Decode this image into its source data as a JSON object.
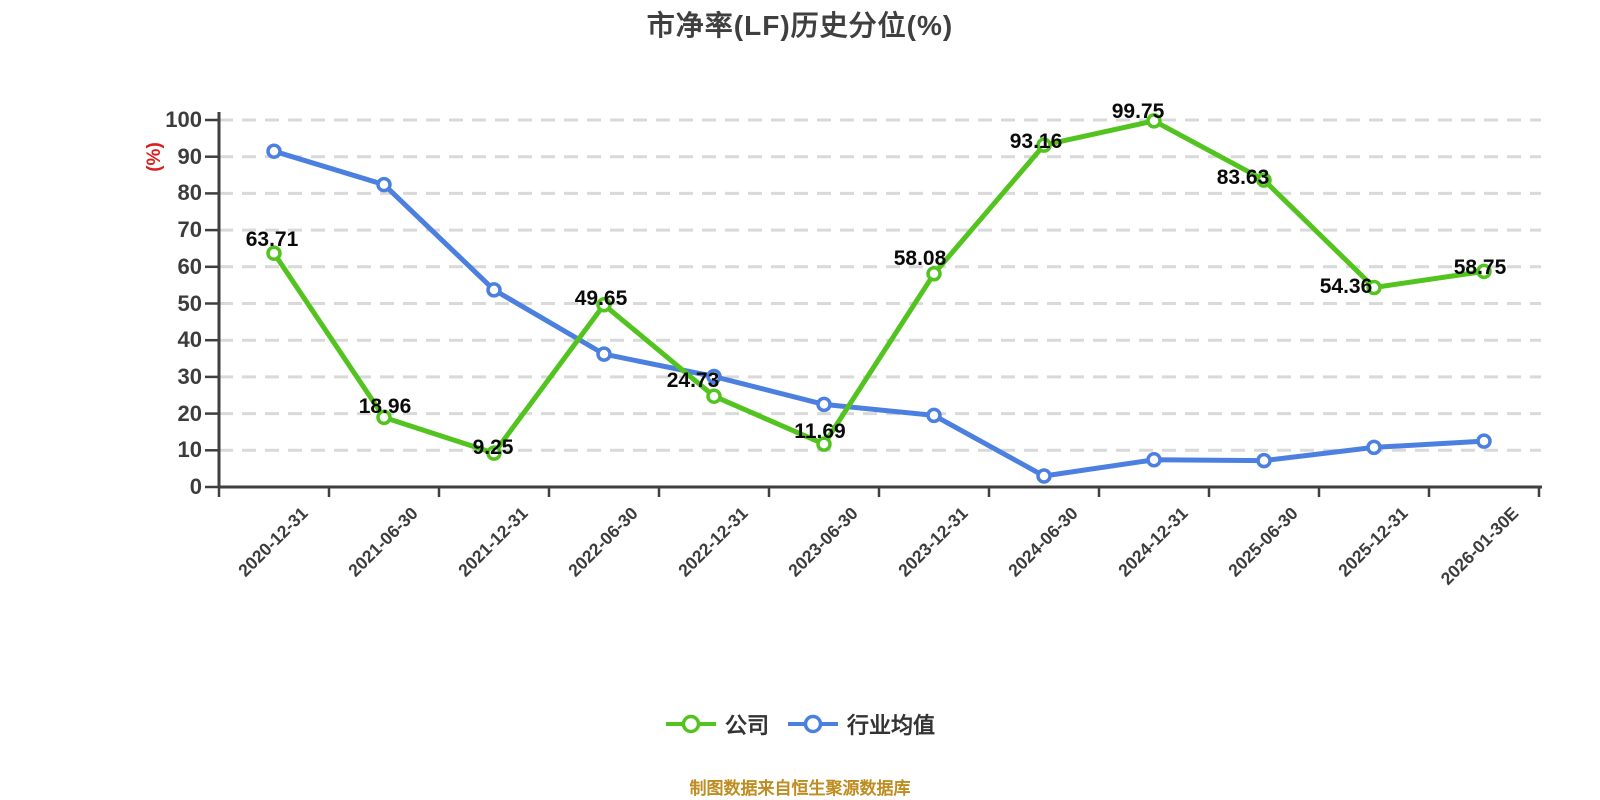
{
  "title": "市净率(LF)历史分位(%)",
  "source_note": "制图数据来自恒生聚源数据库",
  "colors": {
    "company_series": "#53C41F",
    "industry_series": "#4C80E0",
    "unit_label": "#DC1E1E",
    "source_note": "#BE8C1F",
    "axis": "#3F3F3F",
    "gridline": "#D9D9D9",
    "value_label": "#0A0A0A",
    "tick_label": "#3C3C3C",
    "point_fill": "#FFFFFF"
  },
  "chart_data": {
    "type": "line",
    "title": "市净率(LF)历史分位(%)",
    "xlabel": "",
    "ylabel": "(%)",
    "ylim": [
      0,
      100
    ],
    "y_ticks": [
      0,
      10,
      20,
      30,
      40,
      50,
      60,
      70,
      80,
      90,
      100
    ],
    "grid": "horizontal-dashed",
    "legend_position": "bottom",
    "categories": [
      "2020-12-31",
      "2021-06-30",
      "2021-12-31",
      "2022-06-30",
      "2022-12-31",
      "2023-06-30",
      "2023-12-31",
      "2024-06-30",
      "2024-12-31",
      "2025-06-30",
      "2025-12-31",
      "2026-01-30E"
    ],
    "series": [
      {
        "name": "公司",
        "color": "#53C41F",
        "values": [
          63.71,
          18.96,
          9.25,
          49.65,
          24.73,
          11.69,
          58.08,
          93.16,
          99.75,
          83.63,
          54.36,
          58.75
        ],
        "value_labels_visible": true
      },
      {
        "name": "行业均值",
        "color": "#4C80E0",
        "values": [
          91.5,
          82.4,
          53.7,
          36.2,
          30.1,
          22.5,
          19.5,
          3.0,
          7.4,
          7.2,
          10.8,
          12.5
        ],
        "value_labels_visible": false
      }
    ]
  }
}
